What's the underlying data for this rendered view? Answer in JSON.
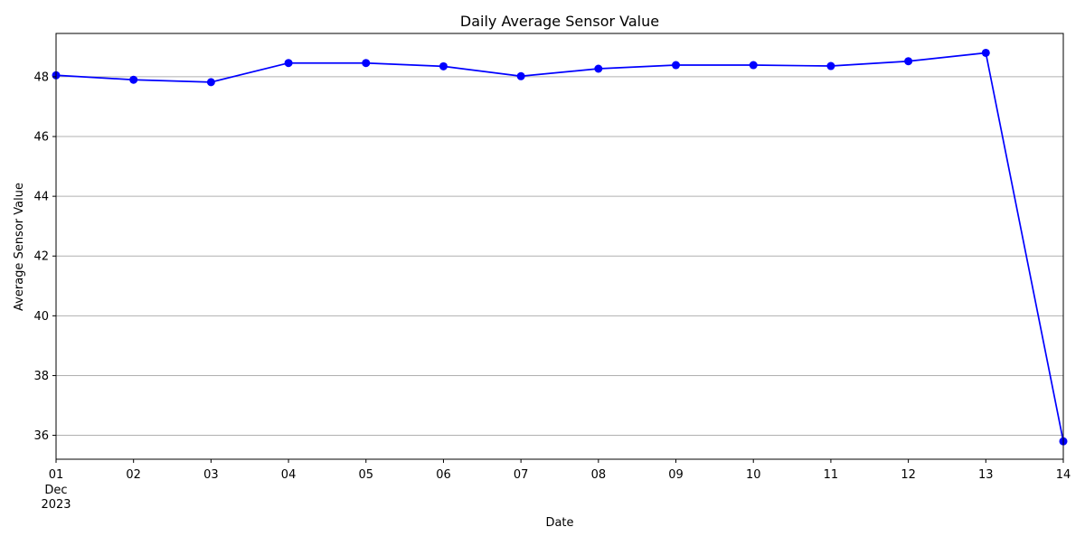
{
  "chart_data": {
    "type": "line",
    "title": "Daily Average Sensor Value",
    "xlabel": "Date",
    "ylabel": "Average Sensor Value",
    "x": [
      "2023-12-01",
      "2023-12-02",
      "2023-12-03",
      "2023-12-04",
      "2023-12-05",
      "2023-12-06",
      "2023-12-07",
      "2023-12-08",
      "2023-12-09",
      "2023-12-10",
      "2023-12-11",
      "2023-12-12",
      "2023-12-13",
      "2023-12-14"
    ],
    "x_tick_labels": [
      "01",
      "02",
      "03",
      "04",
      "05",
      "06",
      "07",
      "08",
      "09",
      "10",
      "11",
      "12",
      "13",
      "14"
    ],
    "x_tick_sublabel_month": "Dec",
    "x_tick_sublabel_year": "2023",
    "y_tick_labels": [
      "36",
      "38",
      "40",
      "42",
      "44",
      "46",
      "48"
    ],
    "y_ticks": [
      36,
      38,
      40,
      42,
      44,
      46,
      48
    ],
    "ylim": [
      35.2,
      49.45
    ],
    "series": [
      {
        "values": [
          48.05,
          47.9,
          47.82,
          48.46,
          48.46,
          48.35,
          48.02,
          48.27,
          48.39,
          48.39,
          48.36,
          48.52,
          48.8,
          35.8
        ],
        "color": "#0000ff",
        "marker": "circle"
      }
    ],
    "grid": "horizontal",
    "legend": "none"
  }
}
